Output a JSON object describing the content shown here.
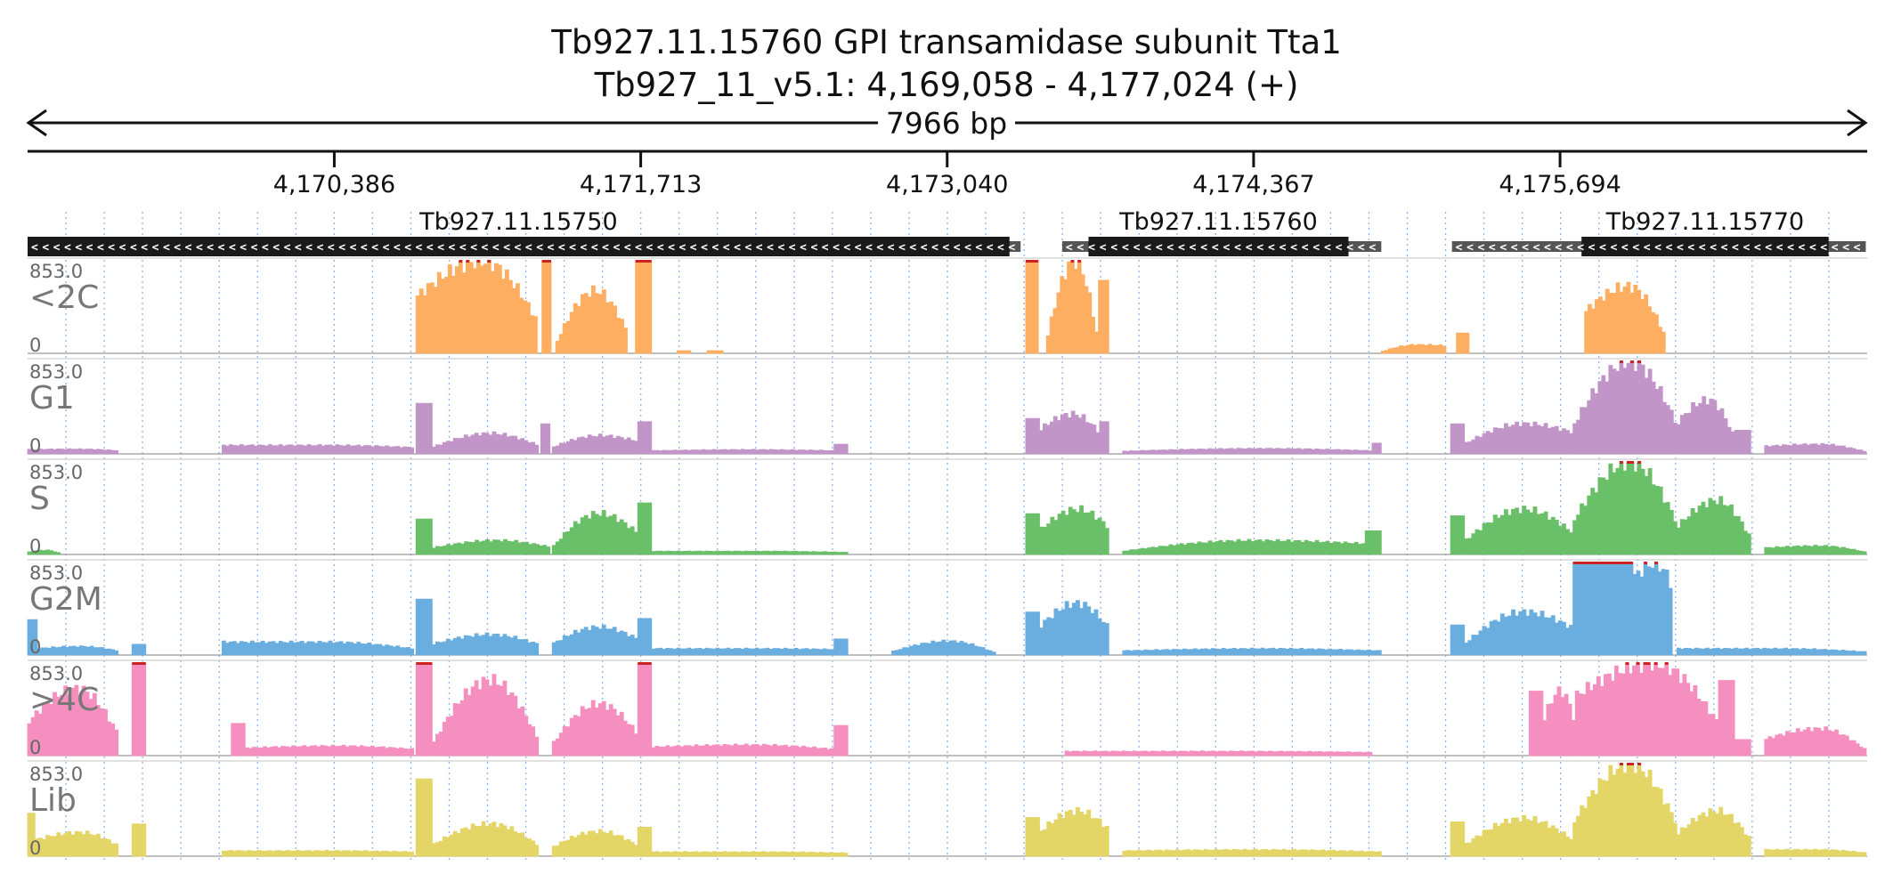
{
  "header": {
    "title_line1": "Tb927.11.15760  GPI transamidase subunit Tta1",
    "title_line2": "Tb927_11_v5.1: 4,169,058 - 4,177,024 (+)",
    "span_label": "7966 bp"
  },
  "chart_data": {
    "type": "area",
    "region": {
      "chromosome": "Tb927_11_v5.1",
      "start": 4169058,
      "end": 4177024,
      "strand": "+"
    },
    "x_ticks": [
      {
        "pos": 4170386,
        "label": "4,170,386"
      },
      {
        "pos": 4171713,
        "label": "4,171,713"
      },
      {
        "pos": 4173040,
        "label": "4,173,040"
      },
      {
        "pos": 4174367,
        "label": "4,174,367"
      },
      {
        "pos": 4175694,
        "label": "4,175,694"
      }
    ],
    "genes": [
      {
        "name": "Tb927.11.15750",
        "strand": "-",
        "utr": [
          4169058,
          4173358
        ],
        "cds": [
          4169058,
          4173310
        ]
      },
      {
        "name": "Tb927.11.15760",
        "strand": "-",
        "utr": [
          4173538,
          4174920
        ],
        "cds": [
          4173652,
          4174778
        ]
      },
      {
        "name": "Tb927.11.15770",
        "strand": "-",
        "utr": [
          4175226,
          4177018
        ],
        "cds": [
          4175787,
          4176857
        ]
      }
    ],
    "y_max": 853.0,
    "y_min": 0,
    "y_max_label": "853.0",
    "y_min_label": "0",
    "grid": true,
    "tracks": [
      {
        "name": "<2C",
        "color": "#fdae61",
        "segments": [
          {
            "start": 4170740,
            "end": 4171265,
            "shape": "hump",
            "from": 520,
            "peak": 853,
            "to": 300
          },
          {
            "start": 4171285,
            "end": 4171325,
            "shape": "flat",
            "level": 853
          },
          {
            "start": 4171345,
            "end": 4171655,
            "shape": "hump",
            "from": 80,
            "peak": 580,
            "to": 200
          },
          {
            "start": 4171690,
            "end": 4171760,
            "shape": "flat",
            "level": 853
          },
          {
            "start": 4171870,
            "end": 4171930,
            "shape": "flat",
            "level": 25
          },
          {
            "start": 4172000,
            "end": 4172070,
            "shape": "flat",
            "level": 25
          },
          {
            "start": 4173380,
            "end": 4173435,
            "shape": "flat",
            "level": 853
          },
          {
            "start": 4173470,
            "end": 4173695,
            "shape": "hump",
            "from": 100,
            "peak": 853,
            "to": 110
          },
          {
            "start": 4173695,
            "end": 4173740,
            "shape": "flat",
            "level": 680
          },
          {
            "start": 4174920,
            "end": 4175200,
            "shape": "hump",
            "from": 15,
            "peak": 80,
            "to": 70
          },
          {
            "start": 4175245,
            "end": 4175300,
            "shape": "flat",
            "level": 190
          },
          {
            "start": 4175800,
            "end": 4176150,
            "shape": "hump",
            "from": 380,
            "peak": 620,
            "to": 160
          }
        ]
      },
      {
        "name": "G1",
        "color": "#c295c9",
        "segments": [
          {
            "start": 4169058,
            "end": 4169450,
            "shape": "hump",
            "from": 40,
            "peak": 45,
            "to": 30
          },
          {
            "start": 4169900,
            "end": 4170730,
            "shape": "hump",
            "from": 80,
            "peak": 80,
            "to": 60
          },
          {
            "start": 4170740,
            "end": 4170810,
            "shape": "flat",
            "level": 470
          },
          {
            "start": 4170810,
            "end": 4171270,
            "shape": "hump",
            "from": 60,
            "peak": 190,
            "to": 80
          },
          {
            "start": 4171280,
            "end": 4171320,
            "shape": "flat",
            "level": 280
          },
          {
            "start": 4171330,
            "end": 4171700,
            "shape": "hump",
            "from": 60,
            "peak": 170,
            "to": 120
          },
          {
            "start": 4171700,
            "end": 4171760,
            "shape": "flat",
            "level": 300
          },
          {
            "start": 4171760,
            "end": 4172550,
            "shape": "hump",
            "from": 30,
            "peak": 40,
            "to": 30
          },
          {
            "start": 4172550,
            "end": 4172610,
            "shape": "flat",
            "level": 90
          },
          {
            "start": 4173380,
            "end": 4173440,
            "shape": "flat",
            "level": 330
          },
          {
            "start": 4173440,
            "end": 4173700,
            "shape": "hump",
            "from": 220,
            "peak": 370,
            "to": 200
          },
          {
            "start": 4173700,
            "end": 4173740,
            "shape": "flat",
            "level": 300
          },
          {
            "start": 4173800,
            "end": 4174880,
            "shape": "hump",
            "from": 25,
            "peak": 50,
            "to": 30
          },
          {
            "start": 4174880,
            "end": 4174920,
            "shape": "flat",
            "level": 100
          },
          {
            "start": 4175220,
            "end": 4175280,
            "shape": "flat",
            "level": 280
          },
          {
            "start": 4175280,
            "end": 4175750,
            "shape": "hump",
            "from": 90,
            "peak": 280,
            "to": 200
          },
          {
            "start": 4175750,
            "end": 4176200,
            "shape": "hump",
            "from": 250,
            "peak": 853,
            "to": 280
          },
          {
            "start": 4176200,
            "end": 4176450,
            "shape": "hump",
            "from": 280,
            "peak": 500,
            "to": 150
          },
          {
            "start": 4176450,
            "end": 4176520,
            "shape": "flat",
            "level": 220
          },
          {
            "start": 4176580,
            "end": 4177020,
            "shape": "hump",
            "from": 70,
            "peak": 90,
            "to": 20
          }
        ]
      },
      {
        "name": "S",
        "color": "#6abf69",
        "segments": [
          {
            "start": 4169058,
            "end": 4169200,
            "shape": "hump",
            "from": 20,
            "peak": 40,
            "to": 10
          },
          {
            "start": 4170740,
            "end": 4170810,
            "shape": "flat",
            "level": 330
          },
          {
            "start": 4170810,
            "end": 4171320,
            "shape": "hump",
            "from": 60,
            "peak": 130,
            "to": 70
          },
          {
            "start": 4171330,
            "end": 4171700,
            "shape": "hump",
            "from": 60,
            "peak": 380,
            "to": 200
          },
          {
            "start": 4171700,
            "end": 4171760,
            "shape": "flat",
            "level": 480
          },
          {
            "start": 4171760,
            "end": 4172610,
            "shape": "hump",
            "from": 30,
            "peak": 30,
            "to": 20
          },
          {
            "start": 4173380,
            "end": 4173440,
            "shape": "flat",
            "level": 380
          },
          {
            "start": 4173440,
            "end": 4173740,
            "shape": "hump",
            "from": 220,
            "peak": 420,
            "to": 250
          },
          {
            "start": 4173800,
            "end": 4174850,
            "shape": "hump",
            "from": 30,
            "peak": 130,
            "to": 100
          },
          {
            "start": 4174850,
            "end": 4174920,
            "shape": "flat",
            "level": 220
          },
          {
            "start": 4175220,
            "end": 4175280,
            "shape": "flat",
            "level": 360
          },
          {
            "start": 4175280,
            "end": 4175750,
            "shape": "hump",
            "from": 120,
            "peak": 420,
            "to": 200
          },
          {
            "start": 4175750,
            "end": 4176200,
            "shape": "hump",
            "from": 300,
            "peak": 853,
            "to": 300
          },
          {
            "start": 4176200,
            "end": 4176520,
            "shape": "hump",
            "from": 250,
            "peak": 500,
            "to": 150
          },
          {
            "start": 4176580,
            "end": 4177020,
            "shape": "hump",
            "from": 60,
            "peak": 80,
            "to": 20
          }
        ]
      },
      {
        "name": "G2M",
        "color": "#6aaee0",
        "segments": [
          {
            "start": 4169058,
            "end": 4169100,
            "shape": "flat",
            "level": 330
          },
          {
            "start": 4169100,
            "end": 4169450,
            "shape": "hump",
            "from": 60,
            "peak": 80,
            "to": 40
          },
          {
            "start": 4169510,
            "end": 4169570,
            "shape": "flat",
            "level": 100
          },
          {
            "start": 4169900,
            "end": 4170730,
            "shape": "hump",
            "from": 120,
            "peak": 120,
            "to": 60
          },
          {
            "start": 4170740,
            "end": 4170810,
            "shape": "flat",
            "level": 520
          },
          {
            "start": 4170810,
            "end": 4171270,
            "shape": "hump",
            "from": 100,
            "peak": 190,
            "to": 100
          },
          {
            "start": 4171330,
            "end": 4171700,
            "shape": "hump",
            "from": 100,
            "peak": 260,
            "to": 150
          },
          {
            "start": 4171700,
            "end": 4171760,
            "shape": "flat",
            "level": 340
          },
          {
            "start": 4171760,
            "end": 4172610,
            "shape": "hump",
            "from": 60,
            "peak": 60,
            "to": 50
          },
          {
            "start": 4172550,
            "end": 4172610,
            "shape": "flat",
            "level": 150
          },
          {
            "start": 4172800,
            "end": 4173250,
            "shape": "hump",
            "from": 30,
            "peak": 130,
            "to": 20
          },
          {
            "start": 4173380,
            "end": 4173440,
            "shape": "flat",
            "level": 400
          },
          {
            "start": 4173440,
            "end": 4173740,
            "shape": "hump",
            "from": 260,
            "peak": 480,
            "to": 250
          },
          {
            "start": 4173800,
            "end": 4174920,
            "shape": "hump",
            "from": 40,
            "peak": 60,
            "to": 40
          },
          {
            "start": 4175220,
            "end": 4175280,
            "shape": "flat",
            "level": 280
          },
          {
            "start": 4175280,
            "end": 4175750,
            "shape": "hump",
            "from": 100,
            "peak": 400,
            "to": 250
          },
          {
            "start": 4175750,
            "end": 4176010,
            "shape": "flat",
            "level": 853
          },
          {
            "start": 4176010,
            "end": 4176180,
            "shape": "hump",
            "from": 700,
            "peak": 853,
            "to": 650
          },
          {
            "start": 4176200,
            "end": 4177020,
            "shape": "hump",
            "from": 60,
            "peak": 60,
            "to": 30
          }
        ]
      },
      {
        "name": ">4C",
        "color": "#f48fbf",
        "segments": [
          {
            "start": 4169058,
            "end": 4169450,
            "shape": "hump",
            "from": 300,
            "peak": 620,
            "to": 200
          },
          {
            "start": 4169510,
            "end": 4169570,
            "shape": "flat",
            "level": 853
          },
          {
            "start": 4169940,
            "end": 4170000,
            "shape": "flat",
            "level": 300
          },
          {
            "start": 4170000,
            "end": 4170730,
            "shape": "hump",
            "from": 70,
            "peak": 90,
            "to": 60
          },
          {
            "start": 4170740,
            "end": 4170810,
            "shape": "flat",
            "level": 853
          },
          {
            "start": 4170810,
            "end": 4171270,
            "shape": "hump",
            "from": 100,
            "peak": 700,
            "to": 150
          },
          {
            "start": 4171330,
            "end": 4171700,
            "shape": "hump",
            "from": 100,
            "peak": 480,
            "to": 200
          },
          {
            "start": 4171700,
            "end": 4171760,
            "shape": "flat",
            "level": 853
          },
          {
            "start": 4171760,
            "end": 4172550,
            "shape": "hump",
            "from": 80,
            "peak": 100,
            "to": 60
          },
          {
            "start": 4172550,
            "end": 4172610,
            "shape": "flat",
            "level": 280
          },
          {
            "start": 4173550,
            "end": 4174880,
            "shape": "hump",
            "from": 40,
            "peak": 40,
            "to": 30
          },
          {
            "start": 4175560,
            "end": 4175620,
            "shape": "flat",
            "level": 600
          },
          {
            "start": 4175620,
            "end": 4175760,
            "shape": "hump",
            "from": 300,
            "peak": 600,
            "to": 300
          },
          {
            "start": 4175760,
            "end": 4176380,
            "shape": "hump",
            "from": 550,
            "peak": 853,
            "to": 300
          },
          {
            "start": 4176380,
            "end": 4176450,
            "shape": "flat",
            "level": 700
          },
          {
            "start": 4176450,
            "end": 4176520,
            "shape": "flat",
            "level": 150
          },
          {
            "start": 4176580,
            "end": 4177020,
            "shape": "hump",
            "from": 150,
            "peak": 250,
            "to": 50
          }
        ]
      },
      {
        "name": "Lib",
        "color": "#e4d567",
        "segments": [
          {
            "start": 4169058,
            "end": 4169090,
            "shape": "flat",
            "level": 400
          },
          {
            "start": 4169090,
            "end": 4169450,
            "shape": "hump",
            "from": 150,
            "peak": 220,
            "to": 100
          },
          {
            "start": 4169510,
            "end": 4169570,
            "shape": "flat",
            "level": 300
          },
          {
            "start": 4169900,
            "end": 4170730,
            "shape": "hump",
            "from": 50,
            "peak": 50,
            "to": 40
          },
          {
            "start": 4170740,
            "end": 4170810,
            "shape": "flat",
            "level": 720
          },
          {
            "start": 4170810,
            "end": 4171270,
            "shape": "hump",
            "from": 100,
            "peak": 300,
            "to": 100
          },
          {
            "start": 4171330,
            "end": 4171700,
            "shape": "hump",
            "from": 80,
            "peak": 230,
            "to": 100
          },
          {
            "start": 4171700,
            "end": 4171760,
            "shape": "flat",
            "level": 270
          },
          {
            "start": 4171760,
            "end": 4172610,
            "shape": "hump",
            "from": 40,
            "peak": 40,
            "to": 30
          },
          {
            "start": 4173380,
            "end": 4173440,
            "shape": "flat",
            "level": 360
          },
          {
            "start": 4173440,
            "end": 4173740,
            "shape": "hump",
            "from": 220,
            "peak": 420,
            "to": 250
          },
          {
            "start": 4173800,
            "end": 4174920,
            "shape": "hump",
            "from": 50,
            "peak": 60,
            "to": 40
          },
          {
            "start": 4175220,
            "end": 4175280,
            "shape": "flat",
            "level": 320
          },
          {
            "start": 4175280,
            "end": 4175750,
            "shape": "hump",
            "from": 100,
            "peak": 350,
            "to": 150
          },
          {
            "start": 4175750,
            "end": 4176200,
            "shape": "hump",
            "from": 300,
            "peak": 853,
            "to": 300
          },
          {
            "start": 4176200,
            "end": 4176520,
            "shape": "hump",
            "from": 200,
            "peak": 420,
            "to": 150
          },
          {
            "start": 4176580,
            "end": 4177020,
            "shape": "hump",
            "from": 60,
            "peak": 60,
            "to": 30
          }
        ]
      }
    ]
  }
}
